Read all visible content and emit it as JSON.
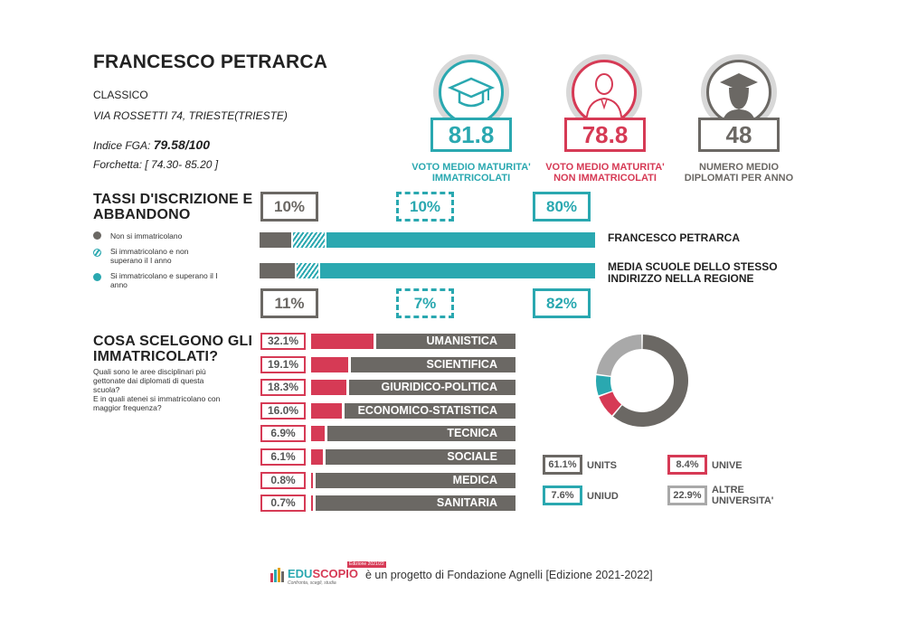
{
  "school": {
    "name": "FRANCESCO PETRARCA",
    "type": "CLASSICO",
    "address": "VIA ROSSETTI 74, TRIESTE(TRIESTE)",
    "fga_label": "Indice FGA:",
    "fga_value": "79.58/100",
    "range_label": "Forchetta:",
    "range_value": "[ 74.30- 85.20 ]"
  },
  "stats": [
    {
      "value": "81.8",
      "label_line1": "VOTO MEDIO MATURITA'",
      "label_line2": "IMMATRICOLATI",
      "color": "#2aa8b0",
      "icon": "graduation-cap-icon"
    },
    {
      "value": "78.8",
      "label_line1": "VOTO MEDIO MATURITA'",
      "label_line2": "NON IMMATRICOLATI",
      "color": "#d63a55",
      "icon": "person-icon"
    },
    {
      "value": "48",
      "label_line1": "NUMERO MEDIO",
      "label_line2": "DIPLOMATI PER ANNO",
      "color": "#6b6864",
      "icon": "graduate-icon"
    }
  ],
  "enrollment": {
    "title_line1": "TASSI D'ISCRIZIONE E",
    "title_line2": "ABBANDONO",
    "legend": [
      {
        "line1": "Non si immatricolano",
        "line2": "",
        "color": "#6b6864"
      },
      {
        "line1": "Si immatricolano e non",
        "line2": "superano il I anno",
        "color": "#2aa8b0"
      },
      {
        "line1": "Si immatricolano e superano il I",
        "line2": "anno",
        "color": "#2aa8b0"
      }
    ],
    "school_pcts": [
      "10%",
      "10%",
      "80%"
    ],
    "region_pcts": [
      "11%",
      "7%",
      "82%"
    ],
    "school_label": "FRANCESCO PETRARCA",
    "region_label_line1": "MEDIA SCUOLE DELLO STESSO",
    "region_label_line2": "INDIRIZZO NELLA REGIONE",
    "school_values": [
      10,
      10,
      80
    ],
    "region_values": [
      11,
      7,
      82
    ]
  },
  "choices": {
    "title_line1": "COSA SCELGONO GLI",
    "title_line2": "IMMATRICOLATI?",
    "desc_line1": "Quali sono le aree disciplinari più",
    "desc_line2": "gettonate dai diplomati di questa",
    "desc_line3": "scuola?",
    "desc_line4": "E in quali atenei si immatricolano con",
    "desc_line5": "maggior frequenza?",
    "areas": [
      {
        "pct": "32.1%",
        "name": "UMANISTICA",
        "value": 32.1
      },
      {
        "pct": "19.1%",
        "name": "SCIENTIFICA",
        "value": 19.1
      },
      {
        "pct": "18.3%",
        "name": "GIURIDICO-POLITICA",
        "value": 18.3
      },
      {
        "pct": "16.0%",
        "name": "ECONOMICO-STATISTICA",
        "value": 16.0
      },
      {
        "pct": "6.9%",
        "name": "TECNICA",
        "value": 6.9
      },
      {
        "pct": "6.1%",
        "name": "SOCIALE",
        "value": 6.1
      },
      {
        "pct": "0.8%",
        "name": "MEDICA",
        "value": 0.8
      },
      {
        "pct": "0.7%",
        "name": "SANITARIA",
        "value": 0.7
      }
    ]
  },
  "universities": [
    {
      "pct": "61.1%",
      "name_line1": "UNITS",
      "name_line2": "",
      "value": 61.1,
      "color": "#6b6864"
    },
    {
      "pct": "8.4%",
      "name_line1": "UNIVE",
      "name_line2": "",
      "value": 8.4,
      "color": "#d63a55"
    },
    {
      "pct": "7.6%",
      "name_line1": "UNIUD",
      "name_line2": "",
      "value": 7.6,
      "color": "#2aa8b0"
    },
    {
      "pct": "22.9%",
      "name_line1": "ALTRE",
      "name_line2": "UNIVERSITA'",
      "value": 22.9,
      "color": "#a9a9a9"
    }
  ],
  "footer": {
    "logo_edu": "EDU",
    "logo_scopio": "SCOPIO",
    "logo_edition": "Edizione 2021/22",
    "logo_tagline": "Confronta, scegli, studia",
    "text": "è un progetto di Fondazione Agnelli [Edizione 2021-2022]"
  }
}
